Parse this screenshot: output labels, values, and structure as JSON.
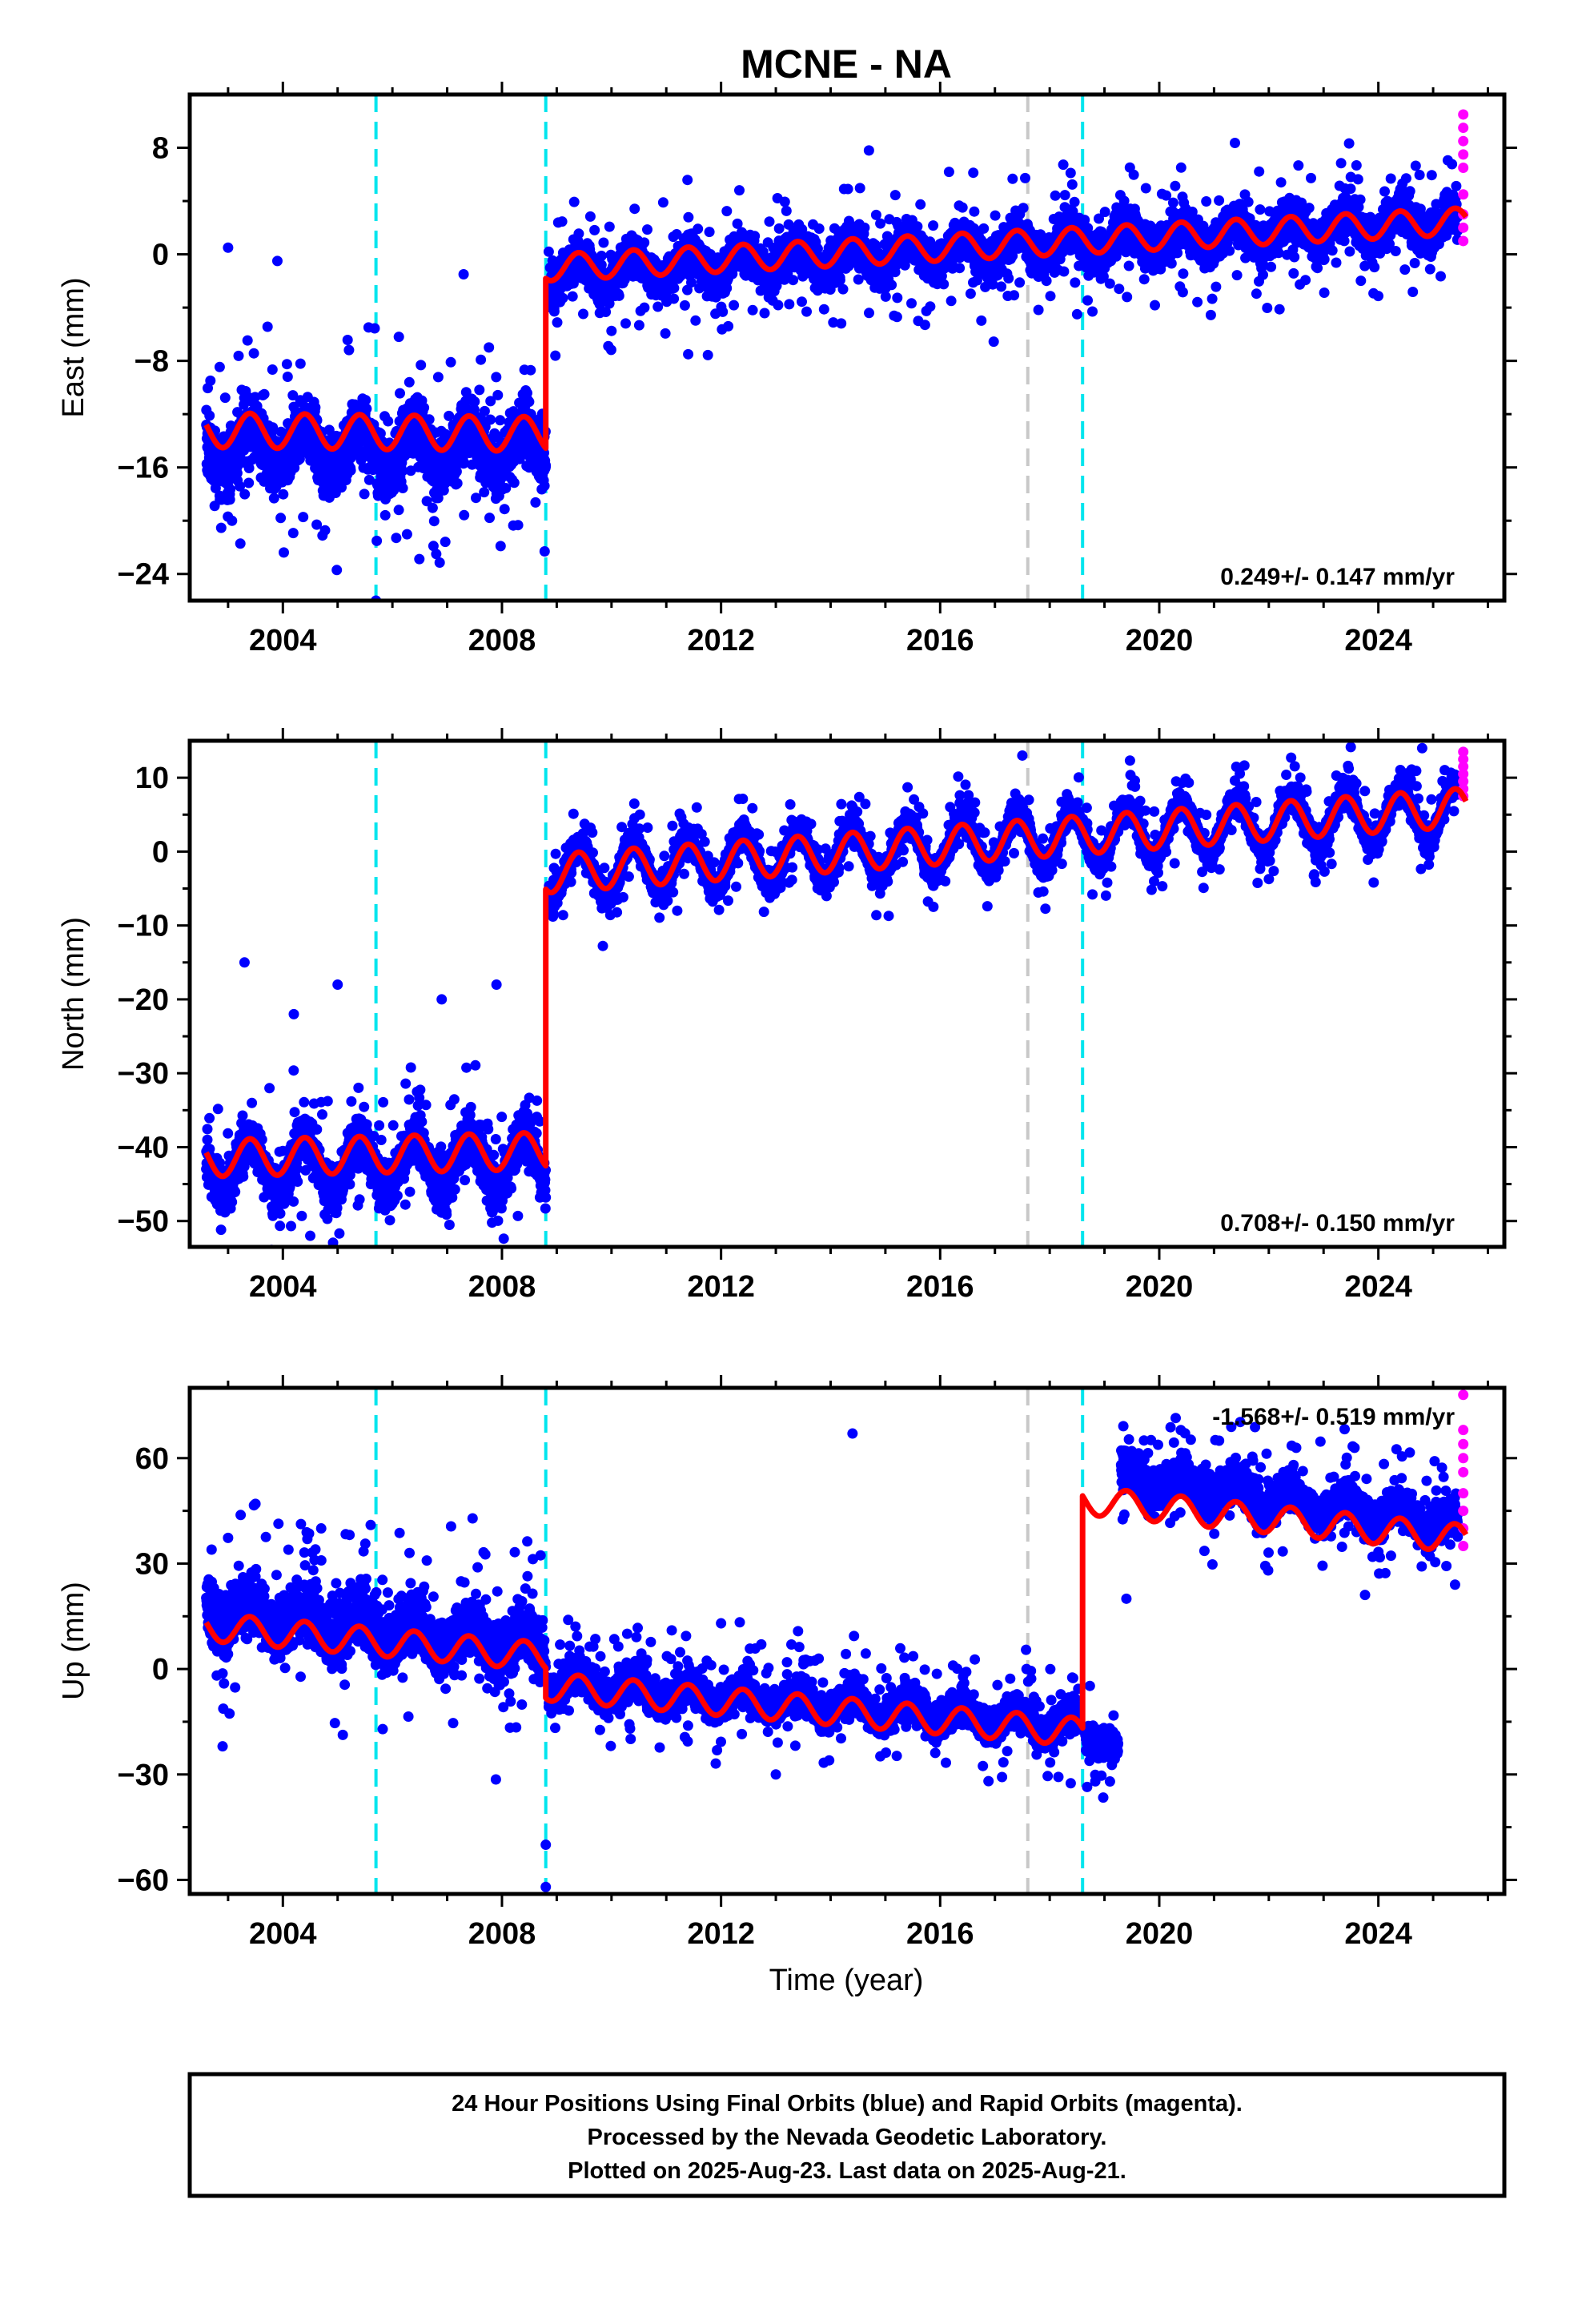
{
  "title": "MCNE - NA",
  "colors": {
    "final": "#0000ff",
    "rapid": "#ff00ff",
    "model": "#ff0000",
    "offset_cyan": "#00e5ee",
    "offset_gray": "#c8c8c8"
  },
  "x_tick_labels": [
    "2004",
    "2008",
    "2012",
    "2016",
    "2020",
    "2024"
  ],
  "xlabel": "Time (year)",
  "footer": {
    "line1": "24 Hour Positions Using Final Orbits (blue) and Rapid Orbits (magenta).",
    "line2": "Processed by the Nevada Geodetic Laboratory.",
    "line3": "Plotted on 2025-Aug-23. Last data on 2025-Aug-21."
  },
  "chart_data": [
    {
      "type": "scatter",
      "title": "MCNE - NA",
      "xlabel": "",
      "ylabel": "East (mm)",
      "xlim": [
        2002.3,
        2026.3
      ],
      "ylim": [
        -26,
        12
      ],
      "xticks": [
        2004,
        2008,
        2012,
        2016,
        2020,
        2024
      ],
      "yticks": [
        -24,
        -16,
        -8,
        0,
        8
      ],
      "ytick_labels": [
        "−24",
        "−16",
        "−8",
        "0",
        "8"
      ],
      "rate_label": "0.249+/- 0.147 mm/yr",
      "rate_position": "bottom-right",
      "offsets_cyan": [
        2005.7,
        2008.8,
        2018.6
      ],
      "offsets_gray": [
        2017.6
      ],
      "series": [
        {
          "role": "final",
          "segments": [
            {
              "x0": 2002.6,
              "x1": 2008.8,
              "base0": -14.5,
              "base1": -14.5,
              "noise": 2.2,
              "seasonal": 1.5,
              "outliers": [
                [
                  2003.0,
                  0.5
                ],
                [
                  2003.9,
                  -0.5
                ],
                [
                  2005.7,
                  -26
                ],
                [
                  2006.8,
                  -22.5
                ],
                [
                  2007.3,
                  -1.5
                ]
              ]
            },
            {
              "x0": 2008.85,
              "x1": 2025.45,
              "base0": -1.5,
              "base1": 2.5,
              "noise": 1.4,
              "seasonal": 1.0,
              "outliers": [
                [
                  2011.4,
                  -7.5
                ],
                [
                  2014.7,
                  7.8
                ],
                [
                  2015.6,
                  -5
                ],
                [
                  2018.5,
                  -4.5
                ]
              ]
            }
          ]
        },
        {
          "role": "rapid",
          "points": [
            [
              2025.55,
              10.5
            ],
            [
              2025.55,
              9.5
            ],
            [
              2025.55,
              8.5
            ],
            [
              2025.55,
              7.5
            ],
            [
              2025.55,
              6.5
            ],
            [
              2025.55,
              4.5
            ],
            [
              2025.55,
              3.0
            ],
            [
              2025.55,
              2.0
            ],
            [
              2025.55,
              1.0
            ]
          ]
        },
        {
          "role": "model",
          "segments": [
            {
              "x0": 2002.6,
              "x1": 2008.8,
              "base0": -13.2,
              "base1": -13.5,
              "amp": 1.3
            },
            {
              "x0": 2008.8,
              "x1": 2025.6,
              "base0": -1.0,
              "base1": 2.5,
              "amp": 1.0
            }
          ]
        }
      ]
    },
    {
      "type": "scatter",
      "xlabel": "",
      "ylabel": "North (mm)",
      "xlim": [
        2002.3,
        2026.3
      ],
      "ylim": [
        -53.5,
        15
      ],
      "xticks": [
        2004,
        2008,
        2012,
        2016,
        2020,
        2024
      ],
      "yticks": [
        -50,
        -40,
        -30,
        -20,
        -10,
        0,
        10
      ],
      "ytick_labels": [
        "−50",
        "−40",
        "−30",
        "−20",
        "−10",
        "0",
        "10"
      ],
      "rate_label": "0.708+/- 0.150 mm/yr",
      "rate_position": "bottom-right",
      "offsets_cyan": [
        2005.7,
        2008.8,
        2018.6
      ],
      "offsets_gray": [
        2017.6
      ],
      "series": [
        {
          "role": "final",
          "segments": [
            {
              "x0": 2002.6,
              "x1": 2008.8,
              "base0": -42.5,
              "base1": -42.0,
              "noise": 3.0,
              "seasonal": 3.5,
              "outliers": [
                [
                  2003.3,
                  -15
                ],
                [
                  2004.2,
                  -22
                ],
                [
                  2005.0,
                  -18
                ],
                [
                  2006.9,
                  -20
                ],
                [
                  2007.9,
                  -18
                ],
                [
                  2004.5,
                  -52
                ]
              ]
            },
            {
              "x0": 2008.85,
              "x1": 2025.45,
              "base0": -3.0,
              "base1": 5.5,
              "noise": 1.6,
              "seasonal": 3.5,
              "outliers": [
                [
                  2017.5,
                  13
                ],
                [
                  2024.8,
                  14
                ],
                [
                  2011.2,
                  -8
                ]
              ]
            }
          ]
        },
        {
          "role": "rapid",
          "points": [
            [
              2025.55,
              13.5
            ],
            [
              2025.55,
              12.5
            ],
            [
              2025.55,
              11.5
            ],
            [
              2025.55,
              10.5
            ],
            [
              2025.55,
              9.5
            ],
            [
              2025.55,
              8.5
            ],
            [
              2025.55,
              7.5
            ]
          ]
        },
        {
          "role": "model",
          "segments": [
            {
              "x0": 2002.6,
              "x1": 2008.8,
              "base0": -41.5,
              "base1": -40.5,
              "amp": 2.5
            },
            {
              "x0": 2008.8,
              "x1": 2025.6,
              "base0": -3.0,
              "base1": 6.0,
              "amp": 2.6
            }
          ]
        }
      ]
    },
    {
      "type": "scatter",
      "xlabel": "Time (year)",
      "ylabel": "Up (mm)",
      "xlim": [
        2002.3,
        2026.3
      ],
      "ylim": [
        -64,
        80
      ],
      "xticks": [
        2004,
        2008,
        2012,
        2016,
        2020,
        2024
      ],
      "yticks": [
        -60,
        -30,
        0,
        30,
        60
      ],
      "ytick_labels": [
        "−60",
        "−30",
        "0",
        "30",
        "60"
      ],
      "rate_label": "-1.568+/- 0.519 mm/yr",
      "rate_position": "top-right",
      "offsets_cyan": [
        2005.7,
        2008.8,
        2018.6
      ],
      "offsets_gray": [
        2017.6
      ],
      "series": [
        {
          "role": "final",
          "segments": [
            {
              "x0": 2002.6,
              "x1": 2008.8,
              "base0": 17,
              "base1": 6,
              "noise": 8,
              "seasonal": 4,
              "outliers": [
                [
                  2003.5,
                  47
                ],
                [
                  2004.7,
                  40
                ],
                [
                  2008.8,
                  -50
                ],
                [
                  2008.8,
                  -62
                ],
                [
                  2002.9,
                  -22
                ]
              ]
            },
            {
              "x0": 2008.85,
              "x1": 2018.55,
              "base0": -4,
              "base1": -16,
              "noise": 4.5,
              "seasonal": 3,
              "outliers": [
                [
                  2014.4,
                  67
                ],
                [
                  2012.0,
                  13
                ],
                [
                  2013.0,
                  -30
                ],
                [
                  2011.1,
                  11
                ]
              ]
            },
            {
              "x0": 2018.65,
              "x1": 2019.25,
              "base0": -20,
              "base1": -22,
              "noise": 4,
              "seasonal": 0,
              "outliers": [
                [
                  2019.1,
                  -32
                ]
              ]
            },
            {
              "x0": 2019.3,
              "x1": 2025.45,
              "base0": 55,
              "base1": 41,
              "noise": 5,
              "seasonal": 3,
              "outliers": [
                [
                  2019.4,
                  20
                ],
                [
                  2025.4,
                  24
                ]
              ]
            }
          ]
        },
        {
          "role": "rapid",
          "points": [
            [
              2025.55,
              78
            ],
            [
              2025.55,
              68
            ],
            [
              2025.55,
              64
            ],
            [
              2025.55,
              60
            ],
            [
              2025.55,
              56
            ],
            [
              2025.55,
              50
            ],
            [
              2025.55,
              45
            ],
            [
              2025.55,
              40
            ],
            [
              2025.55,
              35
            ]
          ]
        },
        {
          "role": "model",
          "segments": [
            {
              "x0": 2002.6,
              "x1": 2008.8,
              "base0": 12,
              "base1": 3.5,
              "amp": 4
            },
            {
              "x0": 2008.8,
              "x1": 2018.6,
              "base0": -5,
              "base1": -18,
              "amp": 4
            },
            {
              "x0": 2018.6,
              "x1": 2025.6,
              "base0": 48,
              "base1": 37,
              "amp": 4
            }
          ]
        }
      ]
    }
  ]
}
